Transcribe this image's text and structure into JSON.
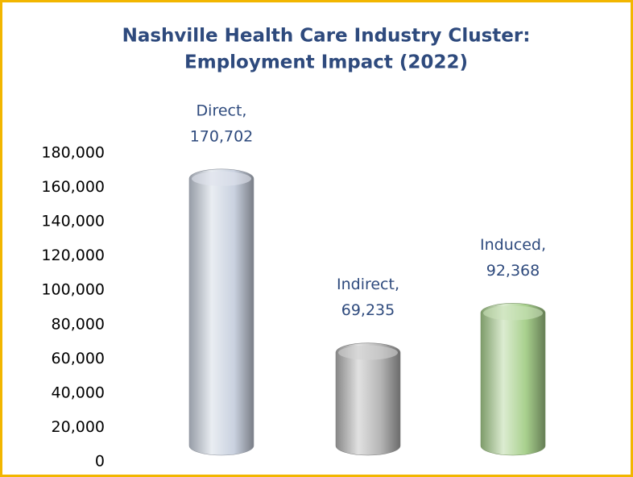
{
  "chart_data": {
    "type": "bar",
    "title": [
      "Nashville Health Care Industry Cluster:",
      "Employment Impact (2022)"
    ],
    "categories": [
      "Direct,",
      "Indirect,",
      "Induced,"
    ],
    "values": [
      170702,
      69235,
      92368
    ],
    "value_labels": [
      "170,702",
      "69,235",
      "92,368"
    ],
    "colors": [
      "#c9d1df",
      "#b4b4b4",
      "#a8d08d"
    ],
    "ylim": [
      0,
      180000
    ],
    "yticks": [
      0,
      {
        "value": 20000,
        "label": "20,000"
      },
      {
        "value": 40000,
        "label": "40,000"
      },
      {
        "value": 60000,
        "label": "60,000"
      },
      {
        "value": 80000,
        "label": "80,000"
      },
      {
        "value": 100000,
        "label": "100,000"
      },
      {
        "value": 120000,
        "label": "120,000"
      },
      {
        "value": 140000,
        "label": "140,000"
      },
      {
        "value": 160000,
        "label": "160,000"
      },
      {
        "value": 180000,
        "label": "180,000"
      }
    ],
    "grid": false
  }
}
